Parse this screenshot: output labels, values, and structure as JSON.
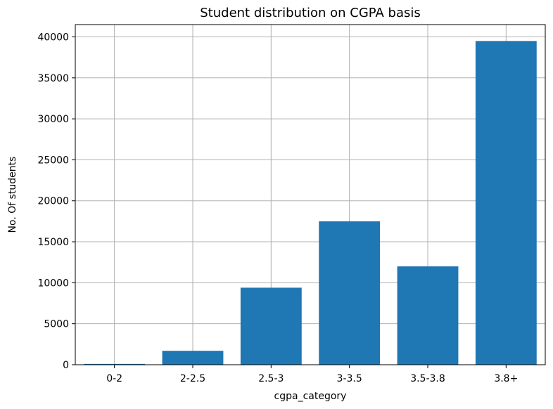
{
  "chart_data": {
    "type": "bar",
    "title": "Student distribution on CGPA basis",
    "xlabel": "cgpa_category",
    "ylabel": "No. Of students",
    "categories": [
      "0-2",
      "2-2.5",
      "2.5-3",
      "3-3.5",
      "3.5-3.8",
      "3.8+"
    ],
    "values": [
      100,
      1700,
      9400,
      17500,
      12000,
      39500
    ],
    "ylim": [
      0,
      41500
    ],
    "yticks": [
      0,
      5000,
      10000,
      15000,
      20000,
      25000,
      30000,
      35000,
      40000
    ],
    "ytick_labels": [
      "0",
      "5000",
      "10000",
      "15000",
      "20000",
      "25000",
      "30000",
      "35000",
      "40000"
    ],
    "grid": true,
    "bar_color": "#1f77b4",
    "grid_color": "#b0b0b0"
  }
}
